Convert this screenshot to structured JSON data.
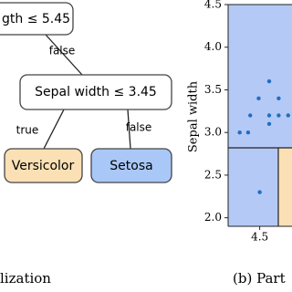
{
  "tree": {
    "root": "gth ≤ 5.45",
    "root_edge": "false",
    "node": "Sepal width ≤ 3.45",
    "left_edge": "true",
    "right_edge": "false",
    "left_leaf": "Versicolor",
    "right_leaf": "Setosa"
  },
  "captions": {
    "left": "lization",
    "right": "(b) Part"
  },
  "chart_data": {
    "type": "scatter",
    "ylabel": "Sepal width",
    "x": [
      4.31,
      4.39,
      4.41,
      4.49,
      4.59,
      4.59,
      4.59,
      4.68,
      4.68,
      4.77,
      4.5
    ],
    "values": [
      3.0,
      3.0,
      3.2,
      3.4,
      3.6,
      3.2,
      3.1,
      3.4,
      3.2,
      3.2,
      2.3
    ],
    "color": "#1f6fc4",
    "xlim": [
      4.2,
      5.5
    ],
    "xticks": [
      4.5
    ],
    "ylim": [
      1.9,
      4.5
    ],
    "yticks": [
      {
        "value": 2.0,
        "label": "2.0"
      },
      {
        "value": 2.5,
        "label": "2.5"
      },
      {
        "value": 3.0,
        "label": "3.0"
      },
      {
        "value": 3.5,
        "label": "3.5"
      },
      {
        "value": 4.0,
        "label": "4.0"
      },
      {
        "value": 4.5,
        "label": "4.5"
      }
    ]
  }
}
